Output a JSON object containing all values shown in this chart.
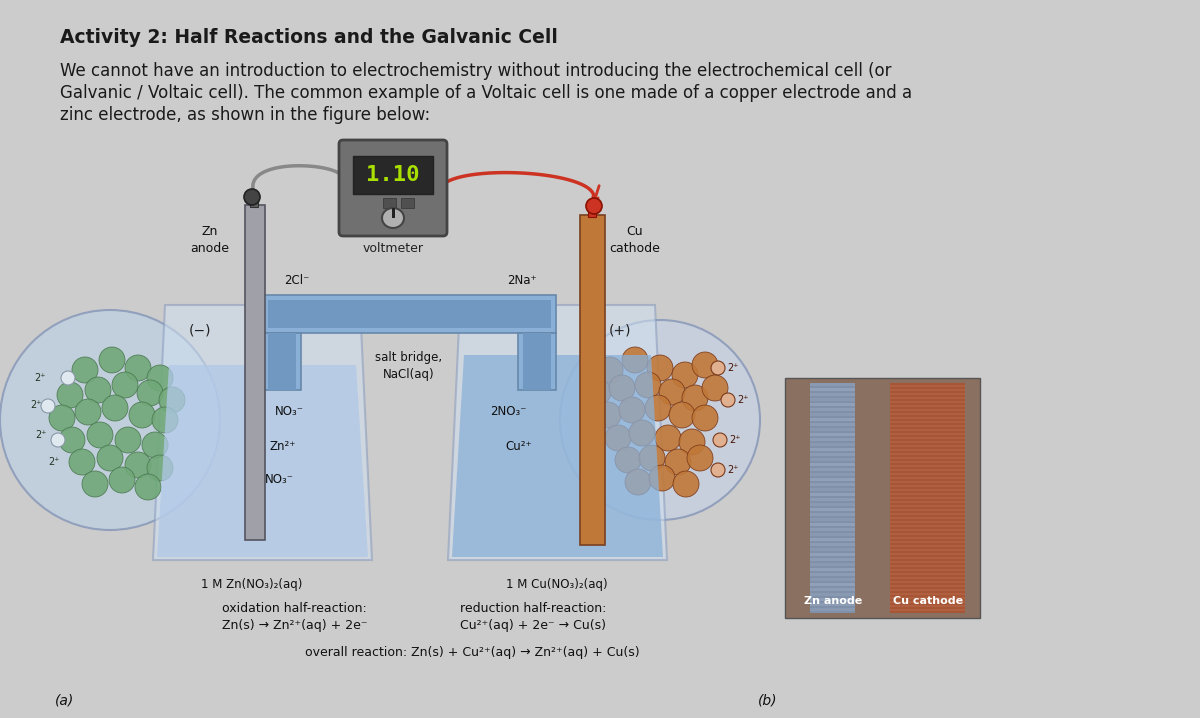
{
  "title": "Activity 2: Half Reactions and the Galvanic Cell",
  "paragraph1": "We cannot have an introduction to electrochemistry without introducing the electrochemical cell (or",
  "paragraph2": "Galvanic / Voltaic cell). The common example of a Voltaic cell is one made of a copper electrode and a",
  "paragraph3": "zinc electrode, as shown in the figure below:",
  "bg_color": "#cccccc",
  "text_color": "#1a1a1a",
  "label_a": "(a)",
  "label_b": "(b)",
  "oxidation_line1": "oxidation half-reaction:",
  "oxidation_line2": "Zn(s) → Zn²⁺(aq) + 2e⁻",
  "reduction_line1": "reduction half-reaction:",
  "reduction_line2": "Cu²⁺(aq) + 2e⁻ → Cu(s)",
  "overall": "overall reaction: Zn(s) + Cu²⁺(aq) → Zn²⁺(aq) + Cu(s)",
  "voltmeter_label": "voltmeter",
  "voltmeter_reading": "1.10",
  "zn_anode_label": "Zn\nanode",
  "cu_cathode_label": "Cu\ncathode",
  "salt_bridge_label": "salt bridge,\nNaCl(aq)",
  "left_solution": "1 M Zn(NO₃)₂(aq)",
  "right_solution": "1 M Cu(NO₃)₂(aq)",
  "left_minus": "(−)",
  "right_plus": "(+)",
  "ions_salt_left": "2Cl⁻",
  "ions_salt_right": "2Na⁺",
  "zn_anode_photo": "Zn anode",
  "cu_cathode_photo": "Cu cathode",
  "diagram_bg": "#c8d0dc",
  "beaker_left_color": "#b0c8e8",
  "beaker_right_color": "#8ab0d8",
  "salt_bridge_outer": "#8ab0d8",
  "salt_bridge_inner": "#7098c0",
  "zn_color": "#a0a0a8",
  "cu_color": "#c07838",
  "sphere_green": "#70a878",
  "sphere_orange": "#c07838",
  "wire_left_color": "#888888",
  "wire_right_color": "#cc3322",
  "voltmeter_body": "#707070",
  "voltmeter_screen": "#282828",
  "voltmeter_text": "#aae000",
  "photo_bg": "#8a7060",
  "photo_zn": "#8090a8",
  "photo_cu": "#b06040"
}
